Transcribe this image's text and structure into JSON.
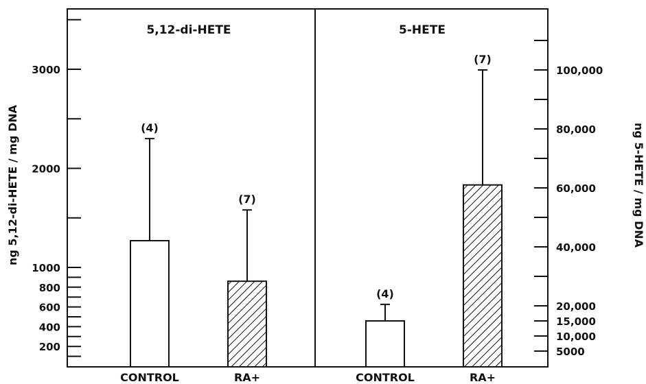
{
  "chart_data": {
    "type": "bar",
    "panels": [
      {
        "title": "5,12-di-HETE",
        "axis": "left",
        "ylabel": "ng 5,12-di-HETE / mg DNA",
        "tick_labels": [
          "200",
          "400",
          "600",
          "800",
          "1000",
          "2000",
          "3000"
        ],
        "categories": [
          "CONTROL",
          "RA+"
        ],
        "values": [
          1270,
          860
        ],
        "error_upper": [
          2300,
          1580
        ],
        "n_labels": [
          "(4)",
          "(7)"
        ],
        "patterns": [
          "none",
          "hatched"
        ]
      },
      {
        "title": "5-HETE",
        "axis": "right",
        "ylabel": "ng 5-HETE / mg DNA",
        "tick_labels": [
          "5000",
          "10,000",
          "15,000",
          "20,000",
          "40,000",
          "60,000",
          "80,000",
          "100,000"
        ],
        "categories": [
          "CONTROL",
          "RA+"
        ],
        "values": [
          15000,
          61000
        ],
        "error_upper": [
          20500,
          100000
        ],
        "n_labels": [
          "(4)",
          "(7)"
        ],
        "patterns": [
          "none",
          "hatched"
        ]
      }
    ]
  }
}
